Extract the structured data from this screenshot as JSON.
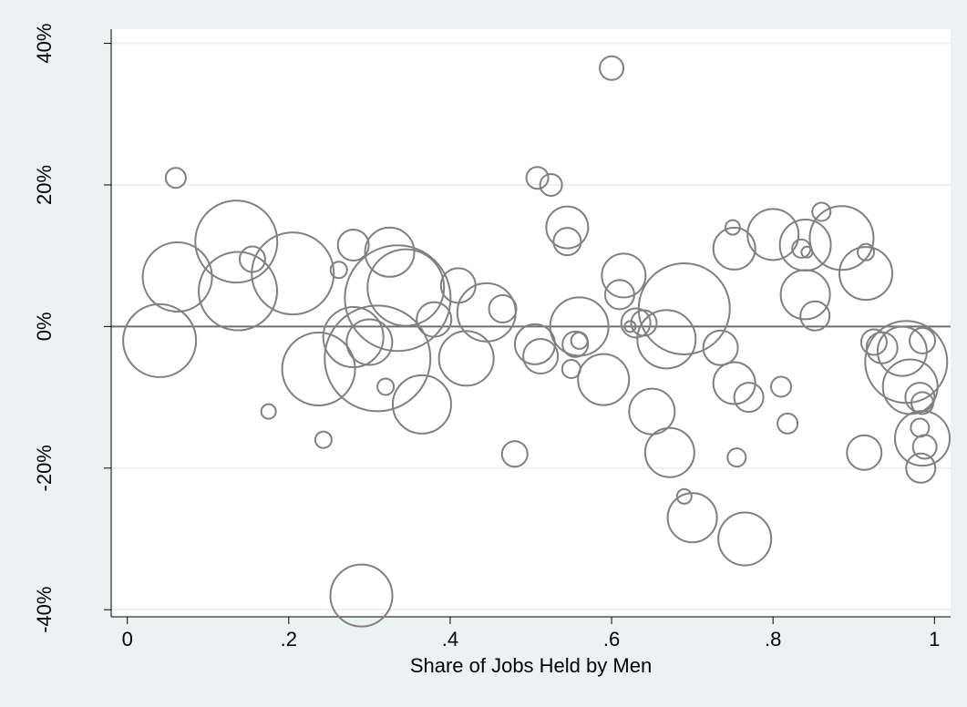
{
  "chart_data": {
    "type": "scatter",
    "title": "",
    "xlabel": "Share of Jobs Held by Men",
    "ylabel": "",
    "xlim": [
      -0.02,
      1.02
    ],
    "ylim": [
      -0.41,
      0.42
    ],
    "x_ticks": [
      0,
      0.2,
      0.4,
      0.6,
      0.8,
      1.0
    ],
    "x_tick_labels": [
      "0",
      ".2",
      ".4",
      ".6",
      ".8",
      "1"
    ],
    "y_ticks": [
      -0.4,
      -0.2,
      0,
      0.2,
      0.4
    ],
    "y_tick_labels": [
      "-40%",
      "-20%",
      "0%",
      "20%",
      "40%"
    ],
    "grid": "horizontal",
    "reference_line_y": 0,
    "marker": "hollow circle, size proportional to weight",
    "colors": {
      "background": "#eaf2f3",
      "plot_area": "#ffffff",
      "marker": "#808080",
      "grid": "#eaf2f3",
      "reference_line": "#707070"
    },
    "points": [
      {
        "x": 0.04,
        "y": -0.02,
        "size": 40
      },
      {
        "x": 0.06,
        "y": 0.21,
        "size": 11
      },
      {
        "x": 0.062,
        "y": 0.07,
        "size": 38
      },
      {
        "x": 0.135,
        "y": 0.12,
        "size": 45
      },
      {
        "x": 0.137,
        "y": 0.05,
        "size": 43
      },
      {
        "x": 0.155,
        "y": 0.095,
        "size": 14
      },
      {
        "x": 0.175,
        "y": -0.12,
        "size": 8
      },
      {
        "x": 0.205,
        "y": 0.075,
        "size": 45
      },
      {
        "x": 0.237,
        "y": -0.06,
        "size": 40
      },
      {
        "x": 0.243,
        "y": -0.16,
        "size": 9
      },
      {
        "x": 0.262,
        "y": 0.08,
        "size": 9
      },
      {
        "x": 0.28,
        "y": 0.115,
        "size": 17
      },
      {
        "x": 0.28,
        "y": -0.015,
        "size": 33
      },
      {
        "x": 0.29,
        "y": -0.38,
        "size": 34
      },
      {
        "x": 0.3,
        "y": -0.022,
        "size": 25
      },
      {
        "x": 0.31,
        "y": -0.045,
        "size": 58
      },
      {
        "x": 0.32,
        "y": -0.085,
        "size": 9
      },
      {
        "x": 0.325,
        "y": 0.105,
        "size": 27
      },
      {
        "x": 0.335,
        "y": 0.04,
        "size": 58
      },
      {
        "x": 0.345,
        "y": 0.055,
        "size": 42
      },
      {
        "x": 0.365,
        "y": -0.11,
        "size": 32
      },
      {
        "x": 0.38,
        "y": 0.01,
        "size": 19
      },
      {
        "x": 0.41,
        "y": 0.058,
        "size": 19
      },
      {
        "x": 0.42,
        "y": -0.045,
        "size": 30
      },
      {
        "x": 0.445,
        "y": 0.02,
        "size": 32
      },
      {
        "x": 0.465,
        "y": 0.025,
        "size": 15
      },
      {
        "x": 0.48,
        "y": -0.18,
        "size": 14
      },
      {
        "x": 0.505,
        "y": -0.025,
        "size": 22
      },
      {
        "x": 0.508,
        "y": 0.21,
        "size": 12
      },
      {
        "x": 0.512,
        "y": -0.042,
        "size": 19
      },
      {
        "x": 0.525,
        "y": 0.2,
        "size": 12
      },
      {
        "x": 0.545,
        "y": 0.14,
        "size": 23
      },
      {
        "x": 0.545,
        "y": 0.12,
        "size": 15
      },
      {
        "x": 0.55,
        "y": -0.06,
        "size": 10
      },
      {
        "x": 0.555,
        "y": -0.025,
        "size": 14
      },
      {
        "x": 0.56,
        "y": -0.02,
        "size": 9
      },
      {
        "x": 0.56,
        "y": 0.0,
        "size": 32
      },
      {
        "x": 0.59,
        "y": -0.075,
        "size": 28
      },
      {
        "x": 0.6,
        "y": 0.365,
        "size": 13
      },
      {
        "x": 0.61,
        "y": 0.045,
        "size": 16
      },
      {
        "x": 0.615,
        "y": 0.072,
        "size": 24
      },
      {
        "x": 0.623,
        "y": 0.0,
        "size": 6
      },
      {
        "x": 0.63,
        "y": 0.005,
        "size": 16
      },
      {
        "x": 0.64,
        "y": 0.005,
        "size": 14
      },
      {
        "x": 0.65,
        "y": -0.12,
        "size": 25
      },
      {
        "x": 0.668,
        "y": -0.018,
        "size": 32
      },
      {
        "x": 0.672,
        "y": -0.178,
        "size": 27
      },
      {
        "x": 0.69,
        "y": 0.025,
        "size": 50
      },
      {
        "x": 0.69,
        "y": -0.24,
        "size": 8
      },
      {
        "x": 0.7,
        "y": -0.27,
        "size": 27
      },
      {
        "x": 0.735,
        "y": -0.03,
        "size": 19
      },
      {
        "x": 0.75,
        "y": 0.14,
        "size": 8
      },
      {
        "x": 0.752,
        "y": 0.11,
        "size": 23
      },
      {
        "x": 0.752,
        "y": -0.08,
        "size": 23
      },
      {
        "x": 0.755,
        "y": -0.185,
        "size": 10
      },
      {
        "x": 0.765,
        "y": -0.3,
        "size": 29
      },
      {
        "x": 0.77,
        "y": -0.1,
        "size": 16
      },
      {
        "x": 0.8,
        "y": 0.13,
        "size": 28
      },
      {
        "x": 0.81,
        "y": -0.085,
        "size": 11
      },
      {
        "x": 0.818,
        "y": -0.137,
        "size": 11
      },
      {
        "x": 0.835,
        "y": 0.11,
        "size": 10
      },
      {
        "x": 0.84,
        "y": 0.115,
        "size": 28
      },
      {
        "x": 0.842,
        "y": 0.105,
        "size": 6
      },
      {
        "x": 0.84,
        "y": 0.045,
        "size": 27
      },
      {
        "x": 0.852,
        "y": 0.015,
        "size": 16
      },
      {
        "x": 0.86,
        "y": 0.162,
        "size": 10
      },
      {
        "x": 0.885,
        "y": 0.125,
        "size": 35
      },
      {
        "x": 0.915,
        "y": 0.075,
        "size": 29
      },
      {
        "x": 0.915,
        "y": 0.105,
        "size": 9
      },
      {
        "x": 0.913,
        "y": -0.178,
        "size": 19
      },
      {
        "x": 0.925,
        "y": -0.022,
        "size": 14
      },
      {
        "x": 0.935,
        "y": -0.03,
        "size": 17
      },
      {
        "x": 0.96,
        "y": -0.035,
        "size": 27
      },
      {
        "x": 0.965,
        "y": -0.05,
        "size": 45
      },
      {
        "x": 0.97,
        "y": -0.085,
        "size": 30
      },
      {
        "x": 0.985,
        "y": -0.02,
        "size": 14
      },
      {
        "x": 0.982,
        "y": -0.1,
        "size": 16
      },
      {
        "x": 0.985,
        "y": -0.108,
        "size": 12
      },
      {
        "x": 0.982,
        "y": -0.143,
        "size": 10
      },
      {
        "x": 0.985,
        "y": -0.158,
        "size": 30
      },
      {
        "x": 0.988,
        "y": -0.17,
        "size": 13
      },
      {
        "x": 0.983,
        "y": -0.2,
        "size": 16
      }
    ]
  }
}
